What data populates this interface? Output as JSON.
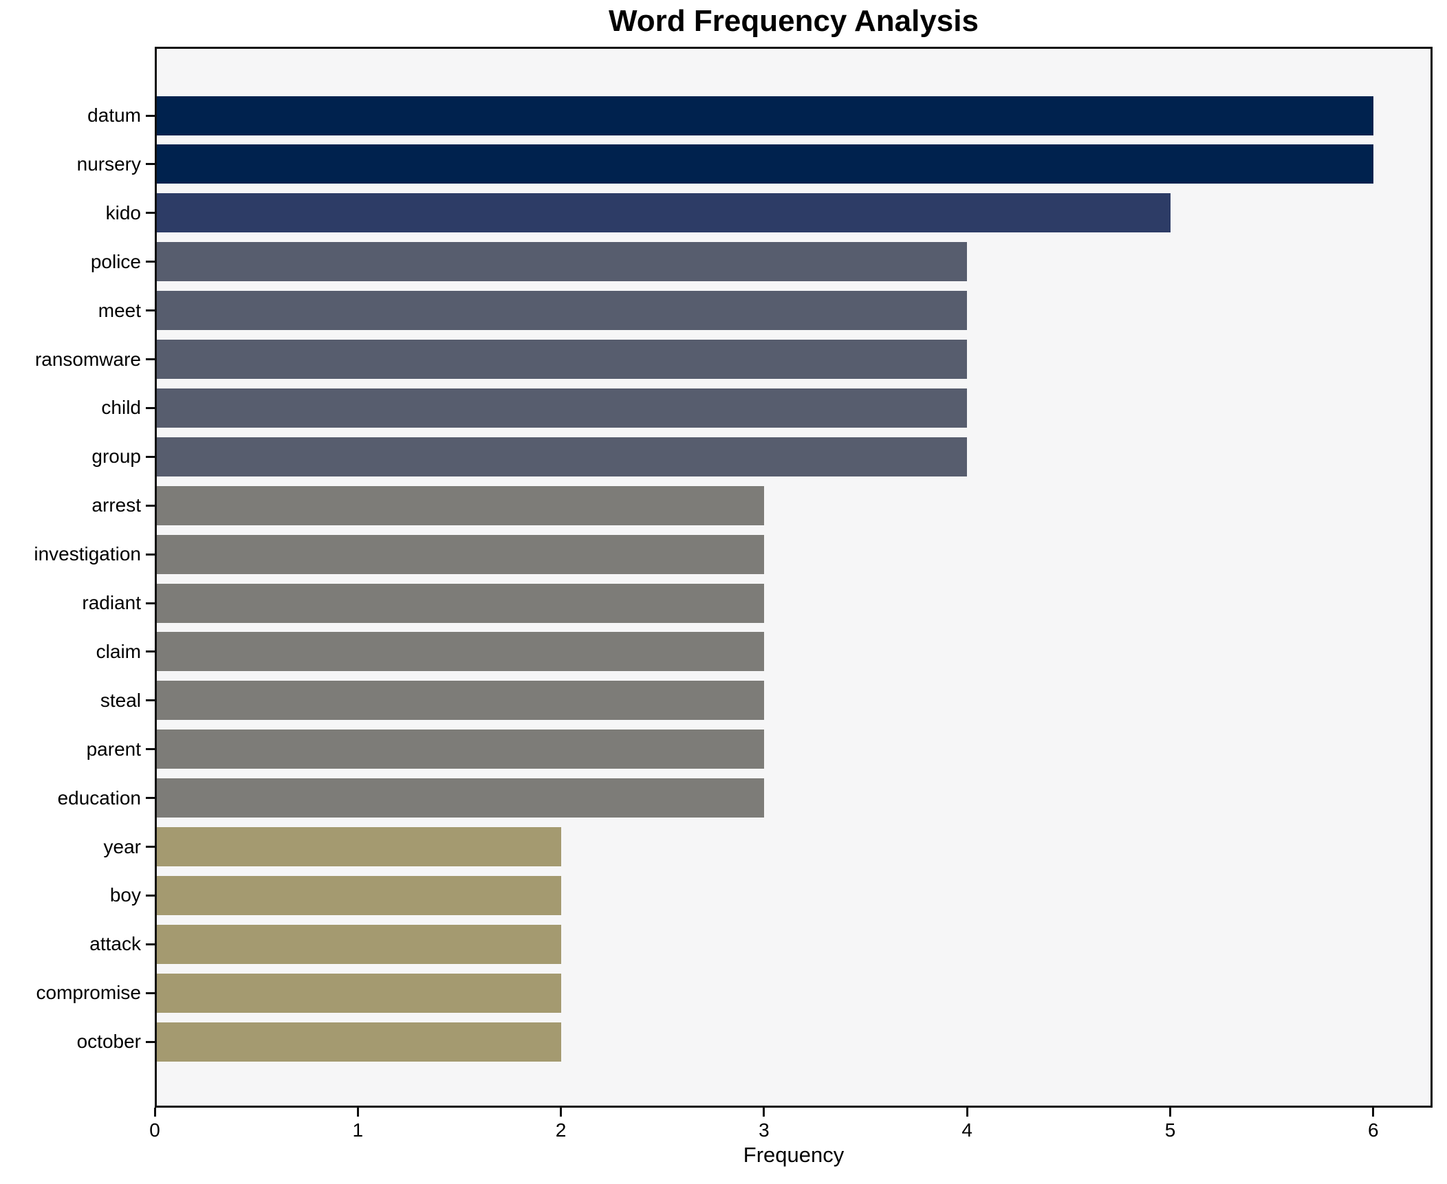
{
  "chart_data": {
    "type": "bar",
    "orientation": "horizontal",
    "title": "Word Frequency Analysis",
    "xlabel": "Frequency",
    "ylabel": "",
    "categories": [
      "datum",
      "nursery",
      "kido",
      "police",
      "meet",
      "ransomware",
      "child",
      "group",
      "arrest",
      "investigation",
      "radiant",
      "claim",
      "steal",
      "parent",
      "education",
      "year",
      "boy",
      "attack",
      "compromise",
      "october"
    ],
    "values": [
      6,
      6,
      5,
      4,
      4,
      4,
      4,
      4,
      3,
      3,
      3,
      3,
      3,
      3,
      3,
      2,
      2,
      2,
      2,
      2
    ],
    "xticks": [
      0,
      1,
      2,
      3,
      4,
      5,
      6
    ],
    "xlim": [
      0,
      6.29
    ],
    "grid": false,
    "legend": null,
    "colors_by_value": {
      "6": "#00224e",
      "5": "#2d3c66",
      "4": "#575d6e",
      "3": "#7d7c78",
      "2": "#a49a70"
    },
    "plot_bg": "#f6f6f7",
    "fig_bg": "#ffffff",
    "spine_color": "#0d0d0d"
  }
}
